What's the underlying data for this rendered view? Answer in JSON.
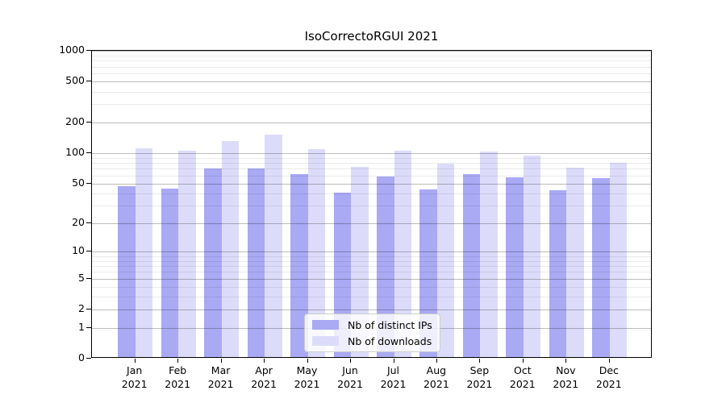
{
  "title": "IsoCorrectoRGUI 2021",
  "chart_data": {
    "type": "bar",
    "title": "IsoCorrectoRGUI 2021",
    "categories": [
      "Jan",
      "Feb",
      "Mar",
      "Apr",
      "May",
      "Jun",
      "Jul",
      "Aug",
      "Sep",
      "Oct",
      "Nov",
      "Dec"
    ],
    "year_label": "2021",
    "series": [
      {
        "name": "Nb of distinct IPs",
        "color": "#a9a9f4",
        "values": [
          45,
          43,
          68,
          68,
          60,
          39,
          57,
          42,
          60,
          56,
          41,
          54
        ]
      },
      {
        "name": "Nb of downloads",
        "color": "#dcdcfa",
        "values": [
          107,
          102,
          127,
          147,
          106,
          71,
          101,
          76,
          100,
          91,
          69,
          77
        ]
      }
    ],
    "y_axis": {
      "scale": "log1p",
      "range": [
        0,
        1000
      ],
      "ticks": [
        0,
        1,
        2,
        5,
        10,
        20,
        50,
        100,
        200,
        500,
        1000
      ],
      "minor_gridlines": [
        3,
        4,
        6,
        7,
        8,
        9,
        30,
        40,
        60,
        70,
        80,
        90,
        300,
        400,
        600,
        700,
        800,
        900
      ]
    },
    "grid": true,
    "legend": {
      "position": "bottom-center",
      "entries": [
        "Nb of distinct IPs",
        "Nb of downloads"
      ]
    }
  }
}
